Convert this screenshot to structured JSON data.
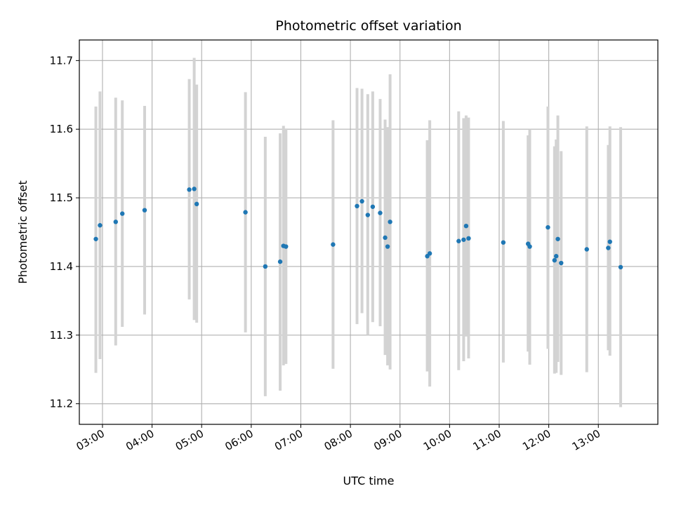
{
  "chart_data": {
    "type": "scatter",
    "title": "Photometric offset variation",
    "xlabel": "UTC time",
    "ylabel": "Photometric offset",
    "grid": true,
    "xlim": [
      "02:32",
      "14:12"
    ],
    "ylim": [
      11.17,
      11.73
    ],
    "x_ticks": [
      "03:00",
      "04:00",
      "05:00",
      "06:00",
      "07:00",
      "08:00",
      "09:00",
      "10:00",
      "11:00",
      "12:00",
      "13:00"
    ],
    "y_ticks": [
      "11.2",
      "11.3",
      "11.4",
      "11.5",
      "11.6",
      "11.7"
    ],
    "colors": {
      "points": "#1f77b4",
      "error_bars": "#d3d3d3",
      "grid": "#b0b0b0"
    },
    "series": [
      {
        "points": [
          {
            "x": "02:52",
            "y": 11.44,
            "ylow": 11.245,
            "yhigh": 11.633
          },
          {
            "x": "02:57",
            "y": 11.46,
            "ylow": 11.265,
            "yhigh": 11.655
          },
          {
            "x": "03:16",
            "y": 11.465,
            "ylow": 11.285,
            "yhigh": 11.646
          },
          {
            "x": "03:24",
            "y": 11.477,
            "ylow": 11.312,
            "yhigh": 11.642
          },
          {
            "x": "03:51",
            "y": 11.482,
            "ylow": 11.33,
            "yhigh": 11.634
          },
          {
            "x": "04:45",
            "y": 11.512,
            "ylow": 11.352,
            "yhigh": 11.673
          },
          {
            "x": "04:51",
            "y": 11.513,
            "ylow": 11.322,
            "yhigh": 11.704
          },
          {
            "x": "04:54",
            "y": 11.491,
            "ylow": 11.318,
            "yhigh": 11.665
          },
          {
            "x": "05:53",
            "y": 11.479,
            "ylow": 11.304,
            "yhigh": 11.654
          },
          {
            "x": "06:17",
            "y": 11.4,
            "ylow": 11.211,
            "yhigh": 11.589
          },
          {
            "x": "06:35",
            "y": 11.407,
            "ylow": 11.219,
            "yhigh": 11.594
          },
          {
            "x": "06:39",
            "y": 11.43,
            "ylow": 11.256,
            "yhigh": 11.605
          },
          {
            "x": "06:42",
            "y": 11.429,
            "ylow": 11.258,
            "yhigh": 11.601
          },
          {
            "x": "07:39",
            "y": 11.432,
            "ylow": 11.251,
            "yhigh": 11.613
          },
          {
            "x": "08:08",
            "y": 11.488,
            "ylow": 11.316,
            "yhigh": 11.66
          },
          {
            "x": "08:14",
            "y": 11.495,
            "ylow": 11.332,
            "yhigh": 11.659
          },
          {
            "x": "08:21",
            "y": 11.475,
            "ylow": 11.3,
            "yhigh": 11.651
          },
          {
            "x": "08:27",
            "y": 11.487,
            "ylow": 11.319,
            "yhigh": 11.655
          },
          {
            "x": "08:36",
            "y": 11.478,
            "ylow": 11.313,
            "yhigh": 11.644
          },
          {
            "x": "08:42",
            "y": 11.442,
            "ylow": 11.271,
            "yhigh": 11.614
          },
          {
            "x": "08:45",
            "y": 11.429,
            "ylow": 11.256,
            "yhigh": 11.603
          },
          {
            "x": "08:48",
            "y": 11.465,
            "ylow": 11.25,
            "yhigh": 11.68
          },
          {
            "x": "09:33",
            "y": 11.415,
            "ylow": 11.247,
            "yhigh": 11.584
          },
          {
            "x": "09:36",
            "y": 11.419,
            "ylow": 11.225,
            "yhigh": 11.613
          },
          {
            "x": "10:11",
            "y": 11.437,
            "ylow": 11.249,
            "yhigh": 11.626
          },
          {
            "x": "10:17",
            "y": 11.439,
            "ylow": 11.262,
            "yhigh": 11.616
          },
          {
            "x": "10:20",
            "y": 11.459,
            "ylow": 11.298,
            "yhigh": 11.62
          },
          {
            "x": "10:23",
            "y": 11.441,
            "ylow": 11.266,
            "yhigh": 11.617
          },
          {
            "x": "11:05",
            "y": 11.435,
            "ylow": 11.26,
            "yhigh": 11.612
          },
          {
            "x": "11:35",
            "y": 11.433,
            "ylow": 11.276,
            "yhigh": 11.591
          },
          {
            "x": "11:37",
            "y": 11.429,
            "ylow": 11.257,
            "yhigh": 11.6
          },
          {
            "x": "11:59",
            "y": 11.457,
            "ylow": 11.28,
            "yhigh": 11.633
          },
          {
            "x": "12:07",
            "y": 11.409,
            "ylow": 11.244,
            "yhigh": 11.575
          },
          {
            "x": "12:09",
            "y": 11.415,
            "ylow": 11.245,
            "yhigh": 11.585
          },
          {
            "x": "12:11",
            "y": 11.44,
            "ylow": 11.261,
            "yhigh": 11.62
          },
          {
            "x": "12:15",
            "y": 11.405,
            "ylow": 11.242,
            "yhigh": 11.568
          },
          {
            "x": "12:46",
            "y": 11.425,
            "ylow": 11.246,
            "yhigh": 11.604
          },
          {
            "x": "13:12",
            "y": 11.427,
            "ylow": 11.278,
            "yhigh": 11.577
          },
          {
            "x": "13:14",
            "y": 11.436,
            "ylow": 11.27,
            "yhigh": 11.604
          },
          {
            "x": "13:27",
            "y": 11.399,
            "ylow": 11.195,
            "yhigh": 11.603
          }
        ]
      }
    ]
  }
}
